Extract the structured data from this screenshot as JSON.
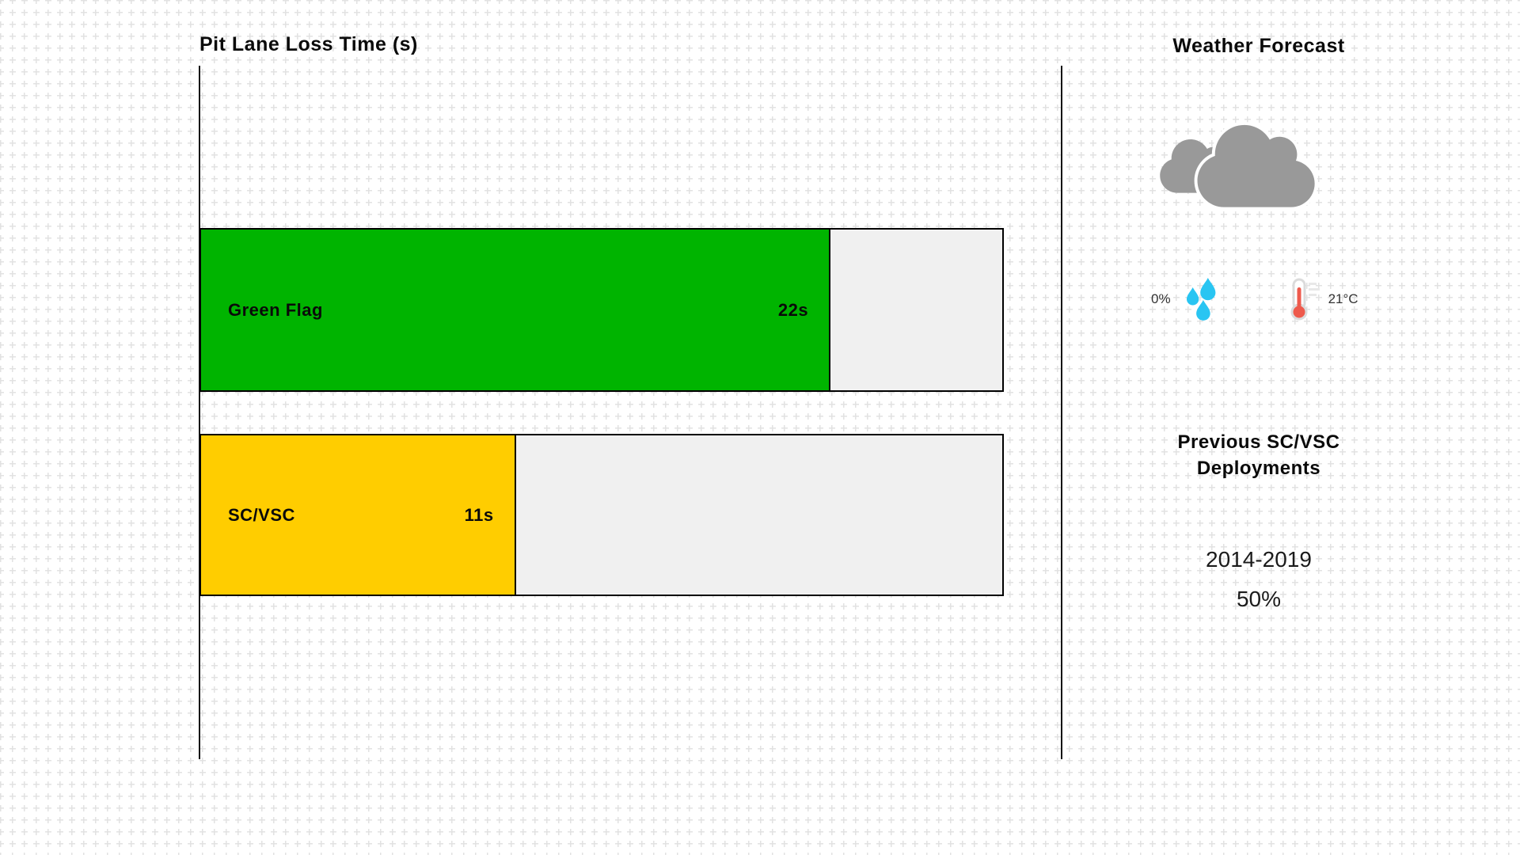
{
  "chart_data": {
    "type": "bar",
    "orientation": "horizontal",
    "title": "Pit Lane Loss Time (s)",
    "categories": [
      "Green Flag",
      "SC/VSC"
    ],
    "values": [
      22,
      11
    ],
    "value_labels": [
      "22s",
      "11s"
    ],
    "unit": "s",
    "xlim": [
      0,
      28
    ],
    "grid": false,
    "legend": false,
    "bar_colors": [
      "#00B400",
      "#FFCD00"
    ],
    "track_color": "#F0F0F0",
    "border_color": "#000000"
  },
  "weather": {
    "title": "Weather Forecast",
    "condition_icon": "cloudy-icon",
    "precipitation": "0%",
    "precipitation_icon": "raindrops-icon",
    "temperature_icon": "thermometer-icon",
    "temperature": "21°C"
  },
  "deployments": {
    "heading": "Previous SC/VSC Deployments",
    "period": "2014-2019",
    "probability": "50%"
  },
  "icon_colors": {
    "cloud": "#999999",
    "rain": "#29C5F2",
    "thermometer_mercury": "#EE5A4C",
    "thermometer_outline": "#DBDBDB"
  }
}
